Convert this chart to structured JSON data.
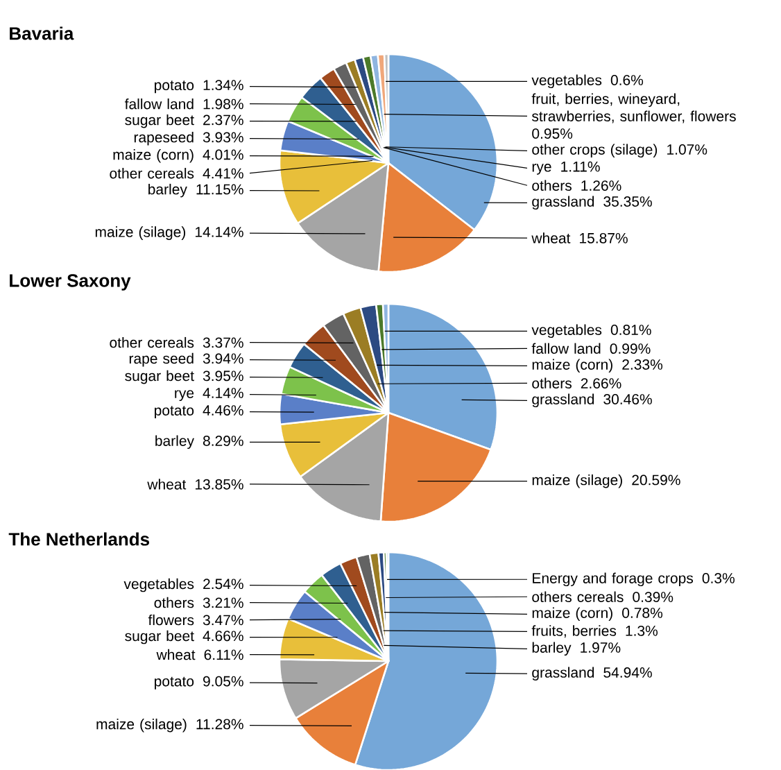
{
  "chart_data": [
    {
      "type": "pie",
      "title": "Bavaria",
      "categories": [
        "grassland",
        "wheat",
        "maize (silage)",
        "barley",
        "other cereals",
        "maize (corn)",
        "rapeseed",
        "sugar beet",
        "fallow land",
        "potato",
        "others",
        "rye",
        "other crops (silage)",
        "fruit, berries, wineyard, strawberries, sunflower, flowers",
        "vegetables"
      ],
      "values": [
        35.35,
        15.87,
        14.14,
        11.15,
        4.41,
        4.01,
        3.93,
        2.37,
        1.98,
        1.34,
        1.26,
        1.11,
        1.07,
        0.95,
        0.6
      ],
      "value_labels": [
        "35.35%",
        "15.87%",
        "14.14%",
        "11.15%",
        "4.41%",
        "4.01%",
        "3.93%",
        "2.37%",
        "1.98%",
        "1.34%",
        "1.26%",
        "1.11%",
        "1.07%",
        "0.95%",
        "0.6%"
      ],
      "colors": [
        "#75a7d8",
        "#e8803a",
        "#a5a5a5",
        "#e8bf3a",
        "#5a7fc8",
        "#7dc24b",
        "#2f5f90",
        "#a04a1e",
        "#636363",
        "#9b7d24",
        "#2c4a82",
        "#4c7a2a",
        "#8fb5e0",
        "#f0a77a",
        "#c0c0c0"
      ]
    },
    {
      "type": "pie",
      "title": "Lower Saxony",
      "categories": [
        "grassland",
        "maize (silage)",
        "wheat",
        "barley",
        "potato",
        "rye",
        "sugar beet",
        "rape seed",
        "other cereals",
        "others",
        "maize (corn)",
        "fallow land",
        "vegetables"
      ],
      "values": [
        30.46,
        20.59,
        13.85,
        8.29,
        4.46,
        4.14,
        3.95,
        3.94,
        3.37,
        2.66,
        2.33,
        0.99,
        0.81
      ],
      "value_labels": [
        "30.46%",
        "20.59%",
        "13.85%",
        "8.29%",
        "4.46%",
        "4.14%",
        "3.95%",
        "3.94%",
        "3.37%",
        "2.66%",
        "2.33%",
        "0.99%",
        "0.81%"
      ],
      "colors": [
        "#75a7d8",
        "#e8803a",
        "#a5a5a5",
        "#e8bf3a",
        "#5a7fc8",
        "#7dc24b",
        "#2f5f90",
        "#a04a1e",
        "#636363",
        "#9b7d24",
        "#2c4a82",
        "#4c7a2a",
        "#8fb5e0"
      ]
    },
    {
      "type": "pie",
      "title": "The Netherlands",
      "categories": [
        "grassland",
        "maize (silage)",
        "potato",
        "wheat",
        "sugar beet",
        "flowers",
        "others",
        "vegetables",
        "barley",
        "fruits, berries",
        "maize (corn)",
        "others cereals",
        "Energy and forage crops"
      ],
      "values": [
        54.94,
        11.28,
        9.05,
        6.11,
        4.66,
        3.47,
        3.21,
        2.54,
        1.97,
        1.3,
        0.78,
        0.39,
        0.3
      ],
      "value_labels": [
        "54.94%",
        "11.28%",
        "9.05%",
        "6.11%",
        "4.66%",
        "3.47%",
        "3.21%",
        "2.54%",
        "1.97%",
        "1.3%",
        "0.78%",
        "0.39%",
        "0.3%"
      ],
      "colors": [
        "#75a7d8",
        "#e8803a",
        "#a5a5a5",
        "#e8bf3a",
        "#5a7fc8",
        "#7dc24b",
        "#2f5f90",
        "#a04a1e",
        "#636363",
        "#9b7d24",
        "#2c4a82",
        "#4c7a2a",
        "#8fb5e0"
      ]
    }
  ]
}
